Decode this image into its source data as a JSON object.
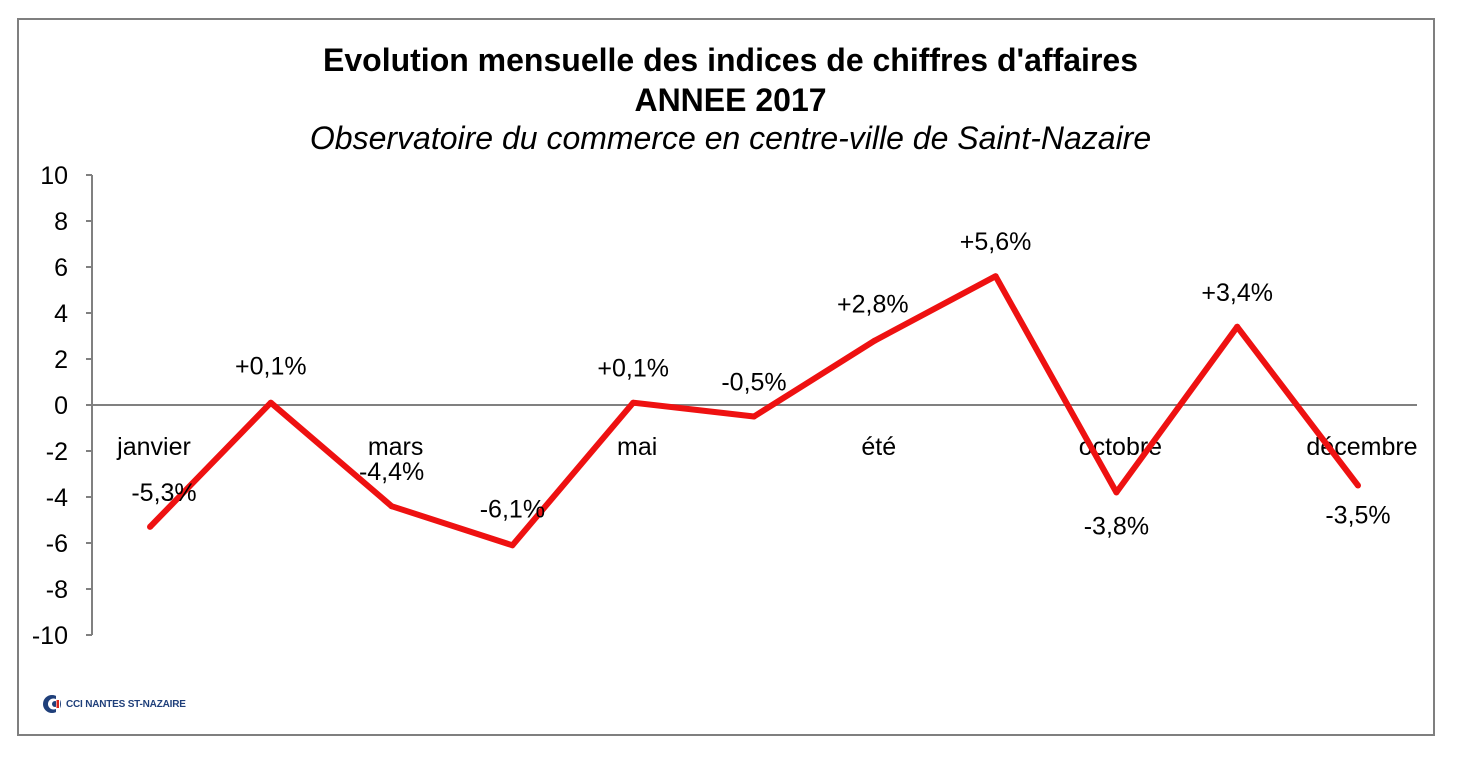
{
  "chart_data": {
    "type": "line",
    "title": "Evolution mensuelle des indices de chiffres d'affaires",
    "subtitle_year": "ANNEE 2017",
    "subtitle_source": "Observatoire du commerce en centre-ville de Saint-Nazaire",
    "categories": [
      "janvier",
      "",
      "mars",
      "",
      "mai",
      "",
      "été",
      "",
      "octobre",
      "",
      "décembre"
    ],
    "series": [
      {
        "values": [
          -5.3,
          0.1,
          -4.4,
          -6.1,
          0.1,
          -0.5,
          2.8,
          5.6,
          -3.8,
          3.4,
          -3.5
        ],
        "data_labels": [
          "-5,3%",
          "+0,1%",
          "-4,4%",
          "-6,1%",
          "+0,1%",
          "-0,5%",
          "+2,8%",
          "+5,6%",
          "-3,8%",
          "+3,4%",
          "-3,5%"
        ],
        "color": "#ee1111"
      }
    ],
    "ylim": [
      -10,
      10
    ],
    "yticks": [
      10,
      8,
      6,
      4,
      2,
      0,
      -2,
      -4,
      -6,
      -8,
      -10
    ],
    "category_labels": [
      "janvier",
      "mars",
      "mai",
      "été",
      "octobre",
      "décembre"
    ],
    "grid": false
  },
  "logo": {
    "text": "CCI NANTES ST-NAZAIRE",
    "color": "#1f3f7a"
  }
}
